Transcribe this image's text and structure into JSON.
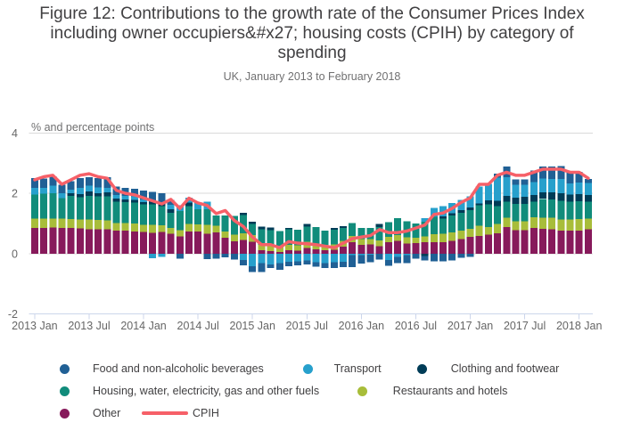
{
  "title": "Figure 12: Contributions to the growth rate of the Consumer Prices Index including owner occupiers&#x27; housing costs (CPIH) by category of spending",
  "subtitle": "UK, January 2013 to February 2018",
  "chart_data": {
    "type": "bar",
    "stacked": true,
    "title": "Figure 12: Contributions to the growth rate of the Consumer Prices Index including owner occupiers&#x27; housing costs (CPIH) by category of spending",
    "subtitle": "UK, January 2013 to February 2018",
    "ylabel": "% and percentage points",
    "xlabel": "",
    "ylim": [
      -2,
      4
    ],
    "y_ticks": [
      4,
      2,
      0,
      -2
    ],
    "x_tick_labels": [
      "2013 Jan",
      "2013 Jul",
      "2014 Jan",
      "2014 Jul",
      "2015 Jan",
      "2015 Jul",
      "2016 Jan",
      "2016 Jul",
      "2017 Jan",
      "2017 Jul",
      "2018 Jan"
    ],
    "x_tick_month_index": [
      0,
      6,
      12,
      18,
      24,
      30,
      36,
      42,
      48,
      54,
      60
    ],
    "grid": true,
    "legend_position": "bottom-left",
    "categories": [
      "2013 Jan",
      "2013 Feb",
      "2013 Mar",
      "2013 Apr",
      "2013 May",
      "2013 Jun",
      "2013 Jul",
      "2013 Aug",
      "2013 Sep",
      "2013 Oct",
      "2013 Nov",
      "2013 Dec",
      "2014 Jan",
      "2014 Feb",
      "2014 Mar",
      "2014 Apr",
      "2014 May",
      "2014 Jun",
      "2014 Jul",
      "2014 Aug",
      "2014 Sep",
      "2014 Oct",
      "2014 Nov",
      "2014 Dec",
      "2015 Jan",
      "2015 Feb",
      "2015 Mar",
      "2015 Apr",
      "2015 May",
      "2015 Jun",
      "2015 Jul",
      "2015 Aug",
      "2015 Sep",
      "2015 Oct",
      "2015 Nov",
      "2015 Dec",
      "2016 Jan",
      "2016 Feb",
      "2016 Mar",
      "2016 Apr",
      "2016 May",
      "2016 Jun",
      "2016 Jul",
      "2016 Aug",
      "2016 Sep",
      "2016 Oct",
      "2016 Nov",
      "2016 Dec",
      "2017 Jan",
      "2017 Feb",
      "2017 Mar",
      "2017 Apr",
      "2017 May",
      "2017 Jun",
      "2017 Jul",
      "2017 Aug",
      "2017 Sep",
      "2017 Oct",
      "2017 Nov",
      "2017 Dec",
      "2018 Jan",
      "2018 Feb"
    ],
    "stack_order_bottom_up": [
      "Other",
      "Restaurants and hotels",
      "Housing, water, electricity, gas and other fuels",
      "Clothing and footwear",
      "Transport",
      "Food and non-alcoholic beverages"
    ],
    "series": [
      {
        "name": "Food and non-alcoholic beverages",
        "color": "#206095",
        "values": [
          0.33,
          0.31,
          0.31,
          0.27,
          0.28,
          0.32,
          0.28,
          0.3,
          0.35,
          0.28,
          0.26,
          0.25,
          0.29,
          0.32,
          0.32,
          0.17,
          -0.17,
          0.0,
          0.0,
          -0.18,
          -0.17,
          -0.12,
          -0.2,
          -0.18,
          -0.2,
          -0.3,
          -0.13,
          -0.22,
          -0.14,
          -0.14,
          -0.12,
          -0.15,
          -0.16,
          -0.19,
          -0.18,
          -0.39,
          -0.29,
          -0.26,
          -0.19,
          -0.19,
          -0.21,
          -0.26,
          -0.16,
          -0.16,
          -0.26,
          -0.25,
          -0.22,
          -0.13,
          -0.1,
          0.0,
          0.0,
          0.14,
          0.35,
          0.17,
          0.17,
          0.38,
          0.4,
          0.41,
          0.43,
          0.35,
          0.35,
          0.14
        ]
      },
      {
        "name": "Transport",
        "color": "#27A0CC",
        "values": [
          0.22,
          0.19,
          0.24,
          0.17,
          0.12,
          0.2,
          0.19,
          0.19,
          0.15,
          0.11,
          0.12,
          0.12,
          0.09,
          -0.15,
          -0.1,
          0.14,
          0.18,
          0.16,
          0.23,
          0.25,
          0.0,
          0.0,
          0.0,
          -0.21,
          -0.41,
          -0.31,
          -0.35,
          -0.32,
          -0.27,
          -0.25,
          -0.23,
          -0.28,
          -0.32,
          -0.29,
          -0.27,
          -0.05,
          -0.04,
          -0.03,
          0.0,
          -0.21,
          -0.1,
          -0.05,
          -0.01,
          0.12,
          0.3,
          0.34,
          0.34,
          0.35,
          0.37,
          0.57,
          0.55,
          0.76,
          0.63,
          0.43,
          0.4,
          0.44,
          0.45,
          0.45,
          0.46,
          0.37,
          0.39,
          0.4
        ]
      },
      {
        "name": "Clothing and footwear",
        "color": "#003C57",
        "values": [
          0.0,
          0.0,
          0.0,
          0.0,
          0.09,
          0.11,
          0.14,
          0.11,
          0.13,
          0.1,
          0.09,
          0.09,
          0.08,
          0.1,
          0.1,
          0.12,
          0.0,
          0.13,
          0.0,
          0.0,
          0.0,
          0.0,
          0.0,
          0.08,
          0.08,
          0.09,
          0.09,
          0.0,
          0.04,
          0.0,
          0.09,
          0.0,
          0.0,
          0.06,
          0.06,
          0.0,
          0.0,
          0.0,
          0.1,
          0.0,
          0.0,
          0.0,
          0.0,
          -0.07,
          0.0,
          0.07,
          0.08,
          0.09,
          0.09,
          0.05,
          0.14,
          0.19,
          0.19,
          0.21,
          0.24,
          0.21,
          0.22,
          0.23,
          0.25,
          0.24,
          0.23,
          0.22
        ]
      },
      {
        "name": "Housing, water, electricity, gas and other fuels",
        "color": "#118C7B",
        "values": [
          0.8,
          0.83,
          0.85,
          0.68,
          0.77,
          0.73,
          0.78,
          0.78,
          0.79,
          0.71,
          0.69,
          0.69,
          0.67,
          0.68,
          0.64,
          0.51,
          0.64,
          0.58,
          0.5,
          0.53,
          0.34,
          0.53,
          0.62,
          0.61,
          0.36,
          0.52,
          0.52,
          0.51,
          0.52,
          0.51,
          0.51,
          0.55,
          0.48,
          0.5,
          0.43,
          0.42,
          0.38,
          0.37,
          0.45,
          0.49,
          0.57,
          0.53,
          0.47,
          0.49,
          0.58,
          0.51,
          0.56,
          0.58,
          0.62,
          0.69,
          0.75,
          0.59,
          0.53,
          0.58,
          0.58,
          0.52,
          0.62,
          0.6,
          0.63,
          0.59,
          0.59,
          0.56
        ]
      },
      {
        "name": "Restaurants and hotels",
        "color": "#A8BD3A",
        "values": [
          0.3,
          0.3,
          0.29,
          0.3,
          0.29,
          0.3,
          0.33,
          0.31,
          0.3,
          0.25,
          0.26,
          0.26,
          0.24,
          0.26,
          0.22,
          0.19,
          0.2,
          0.25,
          0.24,
          0.29,
          0.23,
          0.21,
          0.22,
          0.22,
          0.23,
          0.17,
          0.18,
          0.18,
          0.17,
          0.18,
          0.2,
          0.2,
          0.18,
          0.17,
          0.19,
          0.21,
          0.19,
          0.18,
          0.19,
          0.18,
          0.19,
          0.2,
          0.18,
          0.19,
          0.26,
          0.28,
          0.27,
          0.29,
          0.26,
          0.33,
          0.25,
          0.3,
          0.3,
          0.29,
          0.29,
          0.36,
          0.37,
          0.39,
          0.36,
          0.36,
          0.38,
          0.35
        ]
      },
      {
        "name": "Other",
        "color": "#871A5B",
        "values": [
          0.86,
          0.86,
          0.87,
          0.86,
          0.86,
          0.84,
          0.81,
          0.81,
          0.81,
          0.77,
          0.76,
          0.74,
          0.72,
          0.69,
          0.72,
          0.66,
          0.58,
          0.74,
          0.73,
          0.66,
          0.7,
          0.53,
          0.41,
          0.45,
          0.39,
          0.12,
          0.08,
          0.06,
          0.12,
          0.1,
          0.19,
          0.14,
          0.11,
          0.13,
          0.23,
          0.38,
          0.29,
          0.31,
          0.25,
          0.38,
          0.42,
          0.34,
          0.35,
          0.38,
          0.38,
          0.38,
          0.43,
          0.48,
          0.56,
          0.59,
          0.63,
          0.68,
          0.89,
          0.78,
          0.78,
          0.85,
          0.83,
          0.81,
          0.77,
          0.77,
          0.77,
          0.81
        ]
      }
    ],
    "line_series": {
      "name": "CPIH",
      "color": "#F66068",
      "values": [
        2.45,
        2.55,
        2.6,
        2.3,
        2.45,
        2.6,
        2.65,
        2.55,
        2.5,
        2.1,
        2.0,
        1.95,
        1.85,
        1.75,
        1.65,
        1.8,
        1.5,
        1.84,
        1.68,
        1.6,
        1.33,
        1.43,
        1.1,
        0.9,
        0.55,
        0.3,
        0.3,
        0.2,
        0.4,
        0.35,
        0.33,
        0.3,
        0.25,
        0.2,
        0.35,
        0.5,
        0.55,
        0.6,
        0.8,
        0.7,
        0.7,
        0.75,
        0.85,
        0.95,
        1.3,
        1.35,
        1.5,
        1.7,
        1.85,
        2.3,
        2.3,
        2.6,
        2.7,
        2.6,
        2.6,
        2.7,
        2.8,
        2.8,
        2.8,
        2.7,
        2.7,
        2.5
      ]
    }
  },
  "legend": {
    "rows": [
      [
        {
          "label": "Food and non-alcoholic beverages",
          "color": "#206095",
          "marker": "dot",
          "dot_x": 72,
          "label_x": 104
        },
        {
          "label": "Transport",
          "color": "#27A0CC",
          "marker": "dot",
          "dot_x": 345.8,
          "label_x": 374.6
        },
        {
          "label": "Clothing and footwear",
          "color": "#003C57",
          "marker": "dot",
          "dot_x": 473.3,
          "label_x": 505.7
        }
      ],
      [
        {
          "label": "Housing, water, electricity, gas and other fuels",
          "color": "#118C7B",
          "marker": "dot",
          "dot_x": 72,
          "label_x": 104
        },
        {
          "label": "Restaurants and hotels",
          "color": "#A8BD3A",
          "marker": "dot",
          "dot_x": 406,
          "label_x": 440.8
        }
      ],
      [
        {
          "label": "Other",
          "color": "#871A5B",
          "marker": "dot",
          "dot_x": 72,
          "label_x": 104
        },
        {
          "label": "CPIH",
          "color": "#F66068",
          "marker": "line",
          "dot_x": 158.5,
          "label_x": 216
        }
      ]
    ]
  },
  "colors": {
    "title_text": "#414042",
    "subtitle_text": "#707071",
    "axis_label_text": "#666666",
    "gridline": "#d9d9d9",
    "axis_line": "#ccd6eb"
  }
}
